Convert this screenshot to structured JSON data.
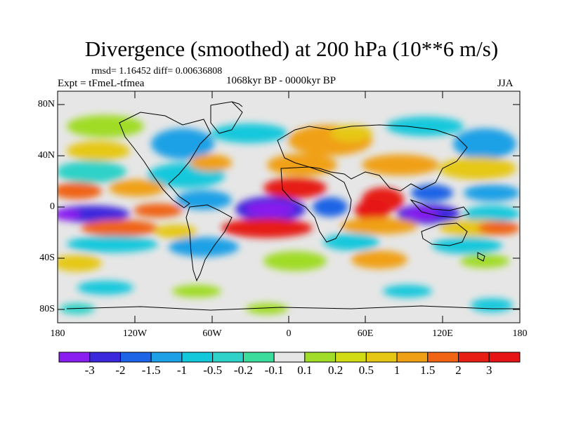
{
  "title": "Divergence (smoothed) at 200 hPa (10**6 m/s)",
  "stats": "rmsd= 1.16452 diff= 0.00636808",
  "experiment": "Expt = tFmeL-tfmea",
  "period": "1068kyr BP - 0000kyr BP",
  "season": "JJA",
  "lat_ticks": [
    "80N",
    "40N",
    "0",
    "40S",
    "80S"
  ],
  "lon_ticks": [
    "180",
    "120W",
    "60W",
    "0",
    "60E",
    "120E",
    "180"
  ],
  "colorbar": {
    "labels": [
      "-3",
      "-2",
      "-1.5",
      "-1",
      "-0.5",
      "-0.2",
      "-0.1",
      "0.1",
      "0.2",
      "0.5",
      "1",
      "1.5",
      "2",
      "3"
    ],
    "colors": [
      "#8a1ef0",
      "#3c28dc",
      "#1e64e6",
      "#1ea0e6",
      "#14c8dc",
      "#2ed2c8",
      "#3cdc9c",
      "#e6e6e6",
      "#a0dc28",
      "#d2dc14",
      "#e6c814",
      "#f0a014",
      "#f06414",
      "#e61e14",
      "#e61414"
    ]
  }
}
